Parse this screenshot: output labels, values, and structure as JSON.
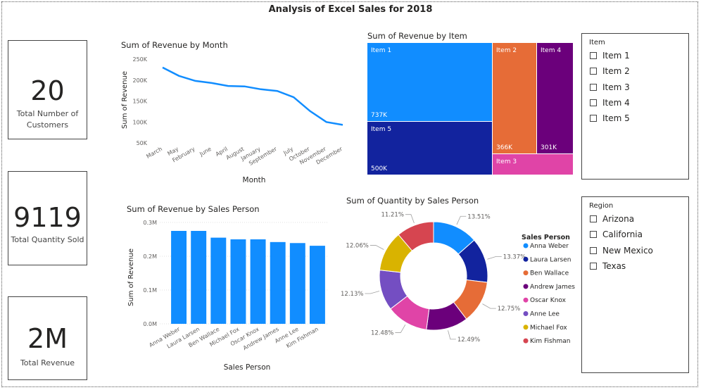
{
  "page": {
    "title": "Analysis of Excel Sales for 2018"
  },
  "cards": [
    {
      "value": "20",
      "label_line1": "Total Number of",
      "label_line2": "Customers"
    },
    {
      "value": "9119",
      "label_line1": "Total Quantity Sold",
      "label_line2": ""
    },
    {
      "value": "2M",
      "label_line1": "Total Revenue",
      "label_line2": ""
    }
  ],
  "slicers": {
    "item": {
      "header": "Item",
      "options": [
        "Item 1",
        "Item 2",
        "Item 3",
        "Item 4",
        "Item 5"
      ]
    },
    "region": {
      "header": "Region",
      "options": [
        "Arizona",
        "California",
        "New Mexico",
        "Texas"
      ]
    }
  },
  "colors": {
    "blue": "#118DFF",
    "darkblue": "#12239E",
    "orange": "#E66C37",
    "purple": "#6B007B",
    "pink": "#E044A7",
    "violet": "#744EC2",
    "gold": "#D9B300",
    "red": "#D64550"
  },
  "chart_data": [
    {
      "type": "line",
      "title": "Sum of Revenue by Month",
      "xlabel": "Month",
      "ylabel": "Sum of Revenue",
      "categories": [
        "March",
        "May",
        "February",
        "June",
        "April",
        "August",
        "January",
        "September",
        "July",
        "October",
        "November",
        "December"
      ],
      "values": [
        230000,
        210000,
        198000,
        193000,
        186000,
        185000,
        178000,
        174000,
        159000,
        126000,
        100000,
        93000
      ],
      "ylim": [
        50000,
        250000
      ],
      "yticks": [
        "250K",
        "200K",
        "150K",
        "100K",
        "50K"
      ],
      "color": "#118DFF"
    },
    {
      "type": "treemap",
      "title": "Sum of Revenue by Item",
      "items": [
        {
          "name": "Item 1",
          "value_label": "737K",
          "color": "#118DFF"
        },
        {
          "name": "Item 5",
          "value_label": "500K",
          "color": "#12239E"
        },
        {
          "name": "Item 2",
          "value_label": "366K",
          "color": "#E66C37"
        },
        {
          "name": "Item 4",
          "value_label": "301K",
          "color": "#6B007B"
        },
        {
          "name": "Item 3",
          "value_label": "",
          "color": "#E044A7"
        }
      ]
    },
    {
      "type": "bar",
      "title": "Sum of Revenue by Sales Person",
      "xlabel": "Sales Person",
      "ylabel": "Sum of Revenue",
      "categories": [
        "Anna Weber",
        "Laura Larsen",
        "Ben Wallace",
        "Michael Fox",
        "Oscar Knox",
        "Andrew James",
        "Anne Lee",
        "Kim Fishman"
      ],
      "values": [
        275000,
        275000,
        255000,
        250000,
        250000,
        242000,
        239000,
        231000
      ],
      "ylim": [
        0,
        300000
      ],
      "yticks": [
        "0.3M",
        "0.2M",
        "0.1M",
        "0.0M"
      ],
      "color": "#118DFF"
    },
    {
      "type": "pie",
      "subtype": "donut",
      "title": "Sum of Quantity by Sales Person",
      "legend_title": "Sales Person",
      "slices": [
        {
          "name": "Anna Weber",
          "percent": 13.51,
          "label": "13.51%",
          "color": "#118DFF"
        },
        {
          "name": "Laura Larsen",
          "percent": 13.37,
          "label": "13.37%",
          "color": "#12239E"
        },
        {
          "name": "Ben Wallace",
          "percent": 12.75,
          "label": "12.75%",
          "color": "#E66C37"
        },
        {
          "name": "Andrew James",
          "percent": 12.49,
          "label": "12.49%",
          "color": "#6B007B"
        },
        {
          "name": "Oscar Knox",
          "percent": 12.48,
          "label": "12.48%",
          "color": "#E044A7"
        },
        {
          "name": "Anne Lee",
          "percent": 12.13,
          "label": "12.13%",
          "color": "#744EC2"
        },
        {
          "name": "Michael Fox",
          "percent": 12.06,
          "label": "12.06%",
          "color": "#D9B300"
        },
        {
          "name": "Kim Fishman",
          "percent": 11.21,
          "label": "11.21%",
          "color": "#D64550"
        }
      ]
    }
  ]
}
